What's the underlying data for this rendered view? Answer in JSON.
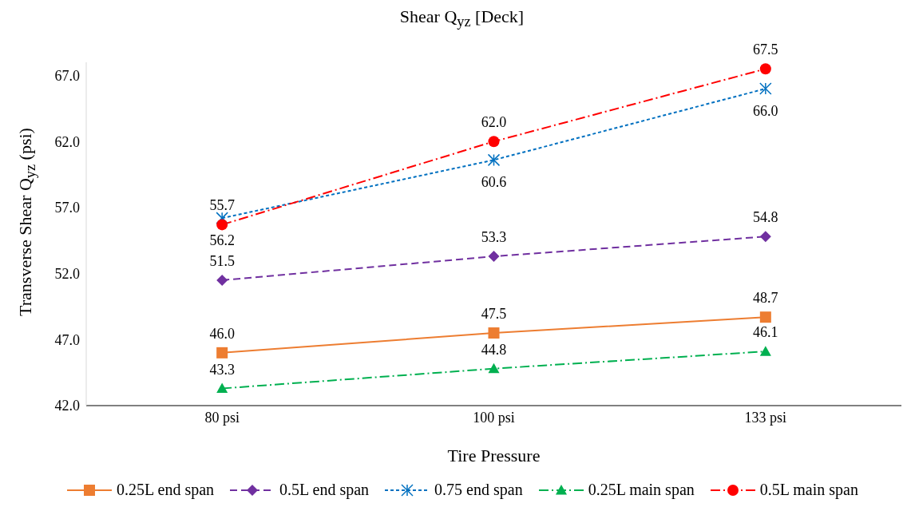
{
  "chart_data": {
    "type": "line",
    "title": "Shear Q$_{yz}$ [Deck]",
    "xlabel": "Tire Pressure",
    "ylabel": "Transverse Shear Q$_{yz}$ (psi)",
    "categories": [
      "80 psi",
      "100 psi",
      "133 psi"
    ],
    "series": [
      {
        "name": "0.25L end span",
        "color": "#ed7d31",
        "marker": "square",
        "line_style": "solid",
        "values": [
          46.0,
          47.5,
          48.7
        ],
        "value_labels": [
          "46.0",
          "47.5",
          "48.7"
        ]
      },
      {
        "name": "0.5L end span",
        "color": "#7030a0",
        "marker": "diamond",
        "line_style": "dashed",
        "values": [
          51.5,
          53.3,
          54.8
        ],
        "value_labels": [
          "51.5",
          "53.3",
          "54.8"
        ]
      },
      {
        "name": "0.75 end span",
        "color": "#0070c0",
        "marker": "cross",
        "line_style": "dotted",
        "values": [
          56.2,
          60.6,
          66.0
        ],
        "value_labels": [
          "56.2",
          "60.6",
          "66.0"
        ]
      },
      {
        "name": "0.25L main span",
        "color": "#00b050",
        "marker": "triangle",
        "line_style": "dashdot",
        "values": [
          43.3,
          44.8,
          46.1
        ],
        "value_labels": [
          "43.3",
          "44.8",
          "46.1"
        ]
      },
      {
        "name": "0.5L main span",
        "color": "#ff0000",
        "marker": "circle",
        "line_style": "dashdot",
        "values": [
          55.7,
          62.0,
          67.5
        ],
        "value_labels": [
          "55.7",
          "62.0",
          "67.5"
        ]
      }
    ],
    "ylim": [
      42,
      68
    ],
    "yticks": [
      {
        "value": 42,
        "label": "42.0"
      },
      {
        "value": 47,
        "label": "47.0"
      },
      {
        "value": 52,
        "label": "52.0"
      },
      {
        "value": 57,
        "label": "57.0"
      },
      {
        "value": 62,
        "label": "62.0"
      },
      {
        "value": 67,
        "label": "67.0"
      }
    ],
    "grid": false,
    "legend": "bottom"
  }
}
